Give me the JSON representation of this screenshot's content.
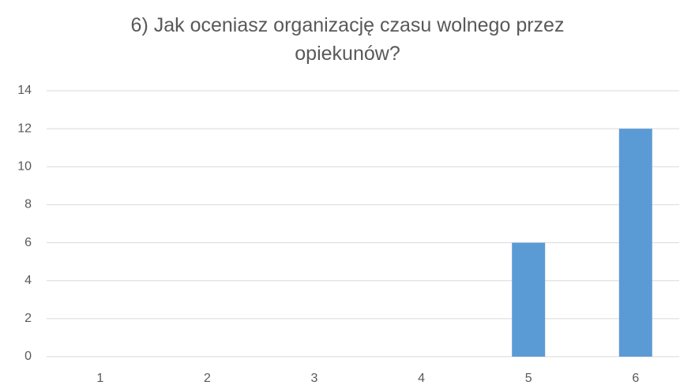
{
  "chart_data": {
    "type": "bar",
    "title": "6) Jak oceniasz organizację czasu wolnego przez opiekunów?",
    "categories": [
      "1",
      "2",
      "3",
      "4",
      "5",
      "6"
    ],
    "values": [
      0,
      0,
      0,
      0,
      6,
      12
    ],
    "color": "#5b9bd5",
    "ylim": [
      0,
      14
    ],
    "yticks": [
      0,
      2,
      4,
      6,
      8,
      10,
      12,
      14
    ],
    "grid": true
  }
}
